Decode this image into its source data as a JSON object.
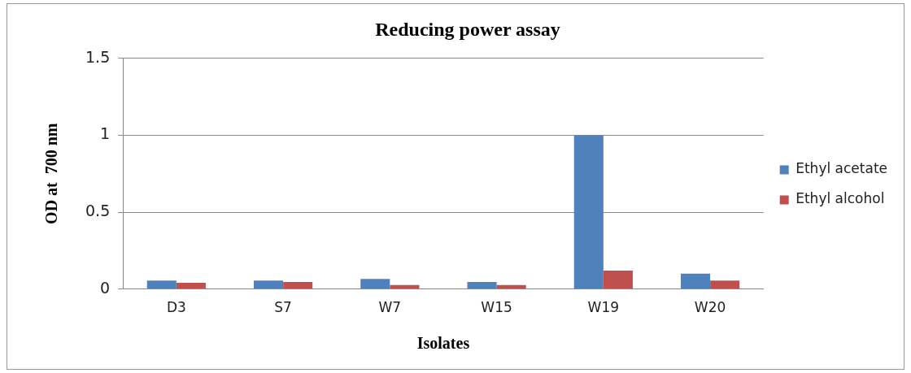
{
  "chart_data": {
    "type": "bar",
    "title": "Reducing power assay",
    "xlabel": "Isolates",
    "ylabel": "OD at  700 nm",
    "categories": [
      "D3",
      "S7",
      "W7",
      "W15",
      "W19",
      "W20"
    ],
    "series": [
      {
        "name": "Ethyl acetate",
        "color": "#4f81bd",
        "values": [
          0.055,
          0.055,
          0.065,
          0.045,
          1.0,
          0.1
        ]
      },
      {
        "name": "Ethyl alcohol",
        "color": "#c0504d",
        "values": [
          0.04,
          0.045,
          0.025,
          0.025,
          0.12,
          0.055
        ]
      }
    ],
    "ylim": [
      0,
      1.5
    ],
    "yticks": [
      0,
      0.5,
      1,
      1.5
    ],
    "grid": "y",
    "legend": "right"
  }
}
